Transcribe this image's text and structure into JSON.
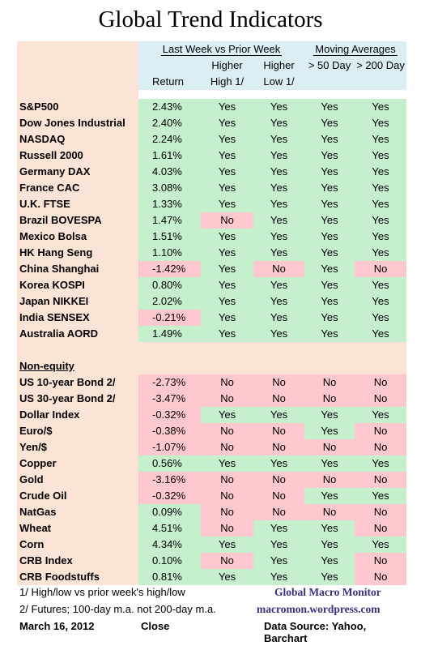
{
  "title": "Global Trend Indicators",
  "header": {
    "group1": "Last Week vs Prior Week",
    "group2": "Moving Averages",
    "col_higher_high_top": "Higher",
    "col_higher_high_bot": "High 1/",
    "col_higher_low_top": "Higher",
    "col_higher_low_bot": "Low 1/",
    "col_return": "Return",
    "col_ma50": "> 50 Day",
    "col_ma200": "> 200 Day"
  },
  "equities": [
    {
      "name": "S&P500",
      "ret": "2.43%",
      "hh": "Yes",
      "hl": "Yes",
      "ma50": "Yes",
      "ma200": "Yes"
    },
    {
      "name": "Dow Jones Industrial",
      "ret": "2.40%",
      "hh": "Yes",
      "hl": "Yes",
      "ma50": "Yes",
      "ma200": "Yes"
    },
    {
      "name": "NASDAQ",
      "ret": "2.24%",
      "hh": "Yes",
      "hl": "Yes",
      "ma50": "Yes",
      "ma200": "Yes"
    },
    {
      "name": "Russell 2000",
      "ret": "1.61%",
      "hh": "Yes",
      "hl": "Yes",
      "ma50": "Yes",
      "ma200": "Yes"
    },
    {
      "name": "Germany DAX",
      "ret": "4.03%",
      "hh": "Yes",
      "hl": "Yes",
      "ma50": "Yes",
      "ma200": "Yes"
    },
    {
      "name": "France CAC",
      "ret": "3.08%",
      "hh": "Yes",
      "hl": "Yes",
      "ma50": "Yes",
      "ma200": "Yes"
    },
    {
      "name": "U.K. FTSE",
      "ret": "1.33%",
      "hh": "Yes",
      "hl": "Yes",
      "ma50": "Yes",
      "ma200": "Yes"
    },
    {
      "name": "Brazil BOVESPA",
      "ret": "1.47%",
      "hh": "No",
      "hl": "Yes",
      "ma50": "Yes",
      "ma200": "Yes"
    },
    {
      "name": "Mexico Bolsa",
      "ret": "1.51%",
      "hh": "Yes",
      "hl": "Yes",
      "ma50": "Yes",
      "ma200": "Yes"
    },
    {
      "name": "HK  Hang Seng",
      "ret": "1.10%",
      "hh": "Yes",
      "hl": "Yes",
      "ma50": "Yes",
      "ma200": "Yes"
    },
    {
      "name": "China Shanghai",
      "ret": "-1.42%",
      "hh": "Yes",
      "hl": "No",
      "ma50": "Yes",
      "ma200": "No"
    },
    {
      "name": "Korea KOSPI",
      "ret": "0.80%",
      "hh": "Yes",
      "hl": "Yes",
      "ma50": "Yes",
      "ma200": "Yes"
    },
    {
      "name": "Japan NIKKEI",
      "ret": "2.02%",
      "hh": "Yes",
      "hl": "Yes",
      "ma50": "Yes",
      "ma200": "Yes"
    },
    {
      "name": "India SENSEX",
      "ret": "-0.21%",
      "hh": "Yes",
      "hl": "Yes",
      "ma50": "Yes",
      "ma200": "Yes"
    },
    {
      "name": "Australia AORD",
      "ret": "1.49%",
      "hh": "Yes",
      "hl": "Yes",
      "ma50": "Yes",
      "ma200": "Yes"
    }
  ],
  "section_non_equity": "Non-equity",
  "non_equity": [
    {
      "name": "US 10-year Bond 2/",
      "ret": "-2.73%",
      "hh": "No",
      "hl": "No",
      "ma50": "No",
      "ma200": "No"
    },
    {
      "name": "US 30-year Bond 2/",
      "ret": "-3.47%",
      "hh": "No",
      "hl": "No",
      "ma50": "No",
      "ma200": "No"
    },
    {
      "name": "Dollar Index",
      "ret": "-0.32%",
      "hh": "Yes",
      "hl": "Yes",
      "ma50": "Yes",
      "ma200": "Yes"
    },
    {
      "name": "Euro/$",
      "ret": "-0.38%",
      "hh": "No",
      "hl": "No",
      "ma50": "Yes",
      "ma200": "No"
    },
    {
      "name": "Yen/$",
      "ret": "-1.07%",
      "hh": "No",
      "hl": "No",
      "ma50": "No",
      "ma200": "No"
    },
    {
      "name": "Copper",
      "ret": "0.56%",
      "hh": "Yes",
      "hl": "Yes",
      "ma50": "Yes",
      "ma200": "Yes"
    },
    {
      "name": "Gold",
      "ret": "-3.16%",
      "hh": "No",
      "hl": "No",
      "ma50": "No",
      "ma200": "No"
    },
    {
      "name": "Crude Oil",
      "ret": "-0.32%",
      "hh": "No",
      "hl": "No",
      "ma50": "Yes",
      "ma200": "Yes"
    },
    {
      "name": "NatGas",
      "ret": "0.09%",
      "hh": "No",
      "hl": "No",
      "ma50": "No",
      "ma200": "No"
    },
    {
      "name": "Wheat",
      "ret": "4.51%",
      "hh": "No",
      "hl": "Yes",
      "ma50": "Yes",
      "ma200": "No"
    },
    {
      "name": "Corn",
      "ret": "4.34%",
      "hh": "Yes",
      "hl": "Yes",
      "ma50": "Yes",
      "ma200": "Yes"
    },
    {
      "name": "CRB Index",
      "ret": "0.10%",
      "hh": "No",
      "hl": "Yes",
      "ma50": "Yes",
      "ma200": "No"
    },
    {
      "name": "CRB Foodstuffs",
      "ret": "0.81%",
      "hh": "Yes",
      "hl": "Yes",
      "ma50": "Yes",
      "ma200": "No"
    }
  ],
  "footer": {
    "note1": "1/  High/low vs prior week's high/low",
    "note2": "2/  Futures;  100-day m.a. not 200-day m.a.",
    "brand_name": "Global Macro Monitor",
    "brand_url": "macromon.wordpress.com",
    "date": "March 16, 2012",
    "close": "Close",
    "source": "Data Source: Yahoo, Barchart"
  },
  "colors": {
    "name_bg": "#fbe4d5",
    "header_bg": "#daeef3",
    "positive_bg": "#c6efce",
    "negative_bg": "#ffc7ce",
    "brand": "#3c2f80"
  }
}
